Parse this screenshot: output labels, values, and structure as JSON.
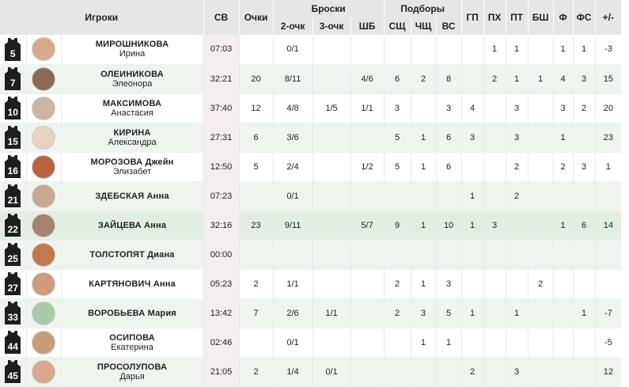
{
  "header": {
    "players": "Игроки",
    "time": "СВ",
    "points": "Очки",
    "shots": "Броски",
    "rebounds": "Подборы",
    "two_pt": "2-очк",
    "three_pt": "3-очк",
    "ft": "ШБ",
    "reb_total": "СЩ",
    "reb_off": "ЧЩ",
    "reb_all": "ВС",
    "assists": "ГП",
    "turnovers": "ПХ",
    "steals": "ПТ",
    "blocks": "БШ",
    "fouls": "Ф",
    "fouls_drawn": "ФС",
    "plus_minus": "+/-"
  },
  "players": [
    {
      "number": "5",
      "last": "МИРОШНИКОВА",
      "first": "Ирина",
      "time": "07:03",
      "pts": "",
      "p2": "0/1",
      "p3": "",
      "ft": "",
      "r1": "",
      "r2": "",
      "r3": "",
      "ast": "",
      "to": "1",
      "stl": "1",
      "blk": "",
      "f": "1",
      "fd": "1",
      "pm": "-3",
      "avatar": "#d9a98a"
    },
    {
      "number": "7",
      "last": "ОЛЕИНИКОВА",
      "first": "Элеонора",
      "time": "32:21",
      "pts": "20",
      "p2": "8/11",
      "p3": "",
      "ft": "4/6",
      "r1": "6",
      "r2": "2",
      "r3": "8",
      "ast": "",
      "to": "2",
      "stl": "1",
      "blk": "1",
      "f": "4",
      "fd": "3",
      "pm": "15",
      "avatar": "#8a6a55"
    },
    {
      "number": "10",
      "last": "МАКСИМОВА",
      "first": "Анастасия",
      "time": "37:40",
      "pts": "12",
      "p2": "4/8",
      "p3": "1/5",
      "ft": "1/1",
      "r1": "3",
      "r2": "",
      "r3": "3",
      "ast": "4",
      "to": "",
      "stl": "3",
      "blk": "",
      "f": "3",
      "fd": "2",
      "pm": "20",
      "avatar": "#cdb5a3"
    },
    {
      "number": "15",
      "last": "КИРИНА",
      "first": "Александра",
      "time": "27:31",
      "pts": "6",
      "p2": "3/6",
      "p3": "",
      "ft": "",
      "r1": "5",
      "r2": "1",
      "r3": "6",
      "ast": "3",
      "to": "",
      "stl": "3",
      "blk": "",
      "f": "1",
      "fd": "",
      "pm": "23",
      "avatar": "#e8d2c0"
    },
    {
      "number": "16",
      "last": "МОРОЗОВА Джейн",
      "first": "Элизабет",
      "time": "12:50",
      "pts": "5",
      "p2": "2/4",
      "p3": "",
      "ft": "1/2",
      "r1": "5",
      "r2": "1",
      "r3": "6",
      "ast": "",
      "to": "",
      "stl": "2",
      "blk": "",
      "f": "2",
      "fd": "3",
      "pm": "1",
      "avatar": "#b5643c"
    },
    {
      "number": "21",
      "last": "ЗДЕБСКАЯ Анна",
      "first": "",
      "time": "07:23",
      "pts": "",
      "p2": "0/1",
      "p3": "",
      "ft": "",
      "r1": "",
      "r2": "",
      "r3": "",
      "ast": "1",
      "to": "",
      "stl": "2",
      "blk": "",
      "f": "",
      "fd": "",
      "pm": "",
      "avatar": "#c9a892"
    },
    {
      "number": "22",
      "last": "ЗАЙЦЕВА Анна",
      "first": "",
      "time": "32:16",
      "pts": "23",
      "p2": "9/11",
      "p3": "",
      "ft": "5/7",
      "r1": "9",
      "r2": "1",
      "r3": "10",
      "ast": "1",
      "to": "3",
      "stl": "",
      "blk": "",
      "f": "1",
      "fd": "6",
      "pm": "14",
      "avatar": "#a5826a"
    },
    {
      "number": "25",
      "last": "ТОЛСТОПЯТ Диана",
      "first": "",
      "time": "00:00",
      "pts": "",
      "p2": "",
      "p3": "",
      "ft": "",
      "r1": "",
      "r2": "",
      "r3": "",
      "ast": "",
      "to": "",
      "stl": "",
      "blk": "",
      "f": "",
      "fd": "",
      "pm": "",
      "avatar": "#c07a4e"
    },
    {
      "number": "27",
      "last": "КАРТЯНОВИЧ Анна",
      "first": "",
      "time": "05:23",
      "pts": "2",
      "p2": "1/1",
      "p3": "",
      "ft": "",
      "r1": "2",
      "r2": "1",
      "r3": "3",
      "ast": "",
      "to": "",
      "stl": "",
      "blk": "2",
      "f": "",
      "fd": "",
      "pm": "",
      "avatar": "#d09a80"
    },
    {
      "number": "33",
      "last": "ВОРОБЬЕВА Мария",
      "first": "",
      "time": "13:42",
      "pts": "7",
      "p2": "2/6",
      "p3": "1/1",
      "ft": "",
      "r1": "2",
      "r2": "3",
      "r3": "5",
      "ast": "1",
      "to": "",
      "stl": "1",
      "blk": "",
      "f": "",
      "fd": "1",
      "pm": "-7",
      "avatar": "#a9c9a9"
    },
    {
      "number": "44",
      "last": "ОСИПОВА",
      "first": "Екатерина",
      "time": "02:46",
      "pts": "",
      "p2": "0/1",
      "p3": "",
      "ft": "",
      "r1": "",
      "r2": "1",
      "r3": "1",
      "ast": "",
      "to": "",
      "stl": "",
      "blk": "",
      "f": "",
      "fd": "",
      "pm": "-5",
      "avatar": "#c89c78"
    },
    {
      "number": "45",
      "last": "ПРОСОЛУПОВА",
      "first": "Дарья",
      "time": "21:05",
      "pts": "2",
      "p2": "1/4",
      "p3": "0/1",
      "ft": "",
      "r1": "",
      "r2": "",
      "r3": "",
      "ast": "2",
      "to": "",
      "stl": "3",
      "blk": "",
      "f": "",
      "fd": "",
      "pm": "12",
      "avatar": "#d8a98e"
    }
  ]
}
